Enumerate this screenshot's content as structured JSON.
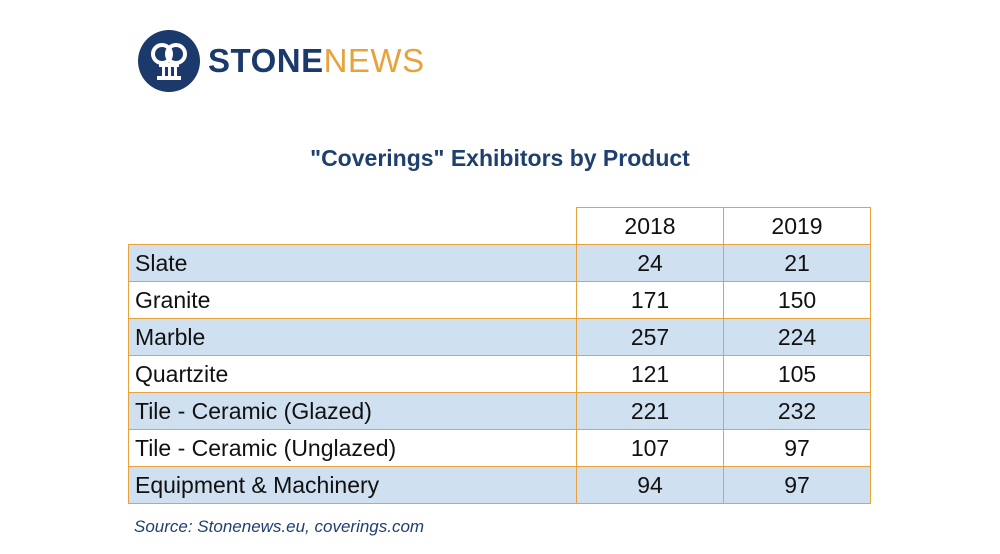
{
  "logo": {
    "stone": "STONE",
    "news": "NEWS"
  },
  "chart_data": {
    "type": "table",
    "title": "\"Coverings\" Exhibitors by Product",
    "columns": [
      "2018",
      "2019"
    ],
    "rows": [
      {
        "label": "Slate",
        "values": [
          24,
          21
        ]
      },
      {
        "label": "Granite",
        "values": [
          171,
          150
        ]
      },
      {
        "label": "Marble",
        "values": [
          257,
          224
        ]
      },
      {
        "label": "Quartzite",
        "values": [
          121,
          105
        ]
      },
      {
        "label": "Tile - Ceramic (Glazed)",
        "values": [
          221,
          232
        ]
      },
      {
        "label": "Tile - Ceramic (Unglazed)",
        "values": [
          107,
          97
        ]
      },
      {
        "label": "Equipment & Machinery",
        "values": [
          94,
          97
        ]
      }
    ],
    "source": "Source: Stonenews.eu, coverings.com"
  },
  "colors": {
    "navy": "#1b3a6b",
    "orange": "#e8a23c",
    "row_fill": "#cfe0f1"
  }
}
